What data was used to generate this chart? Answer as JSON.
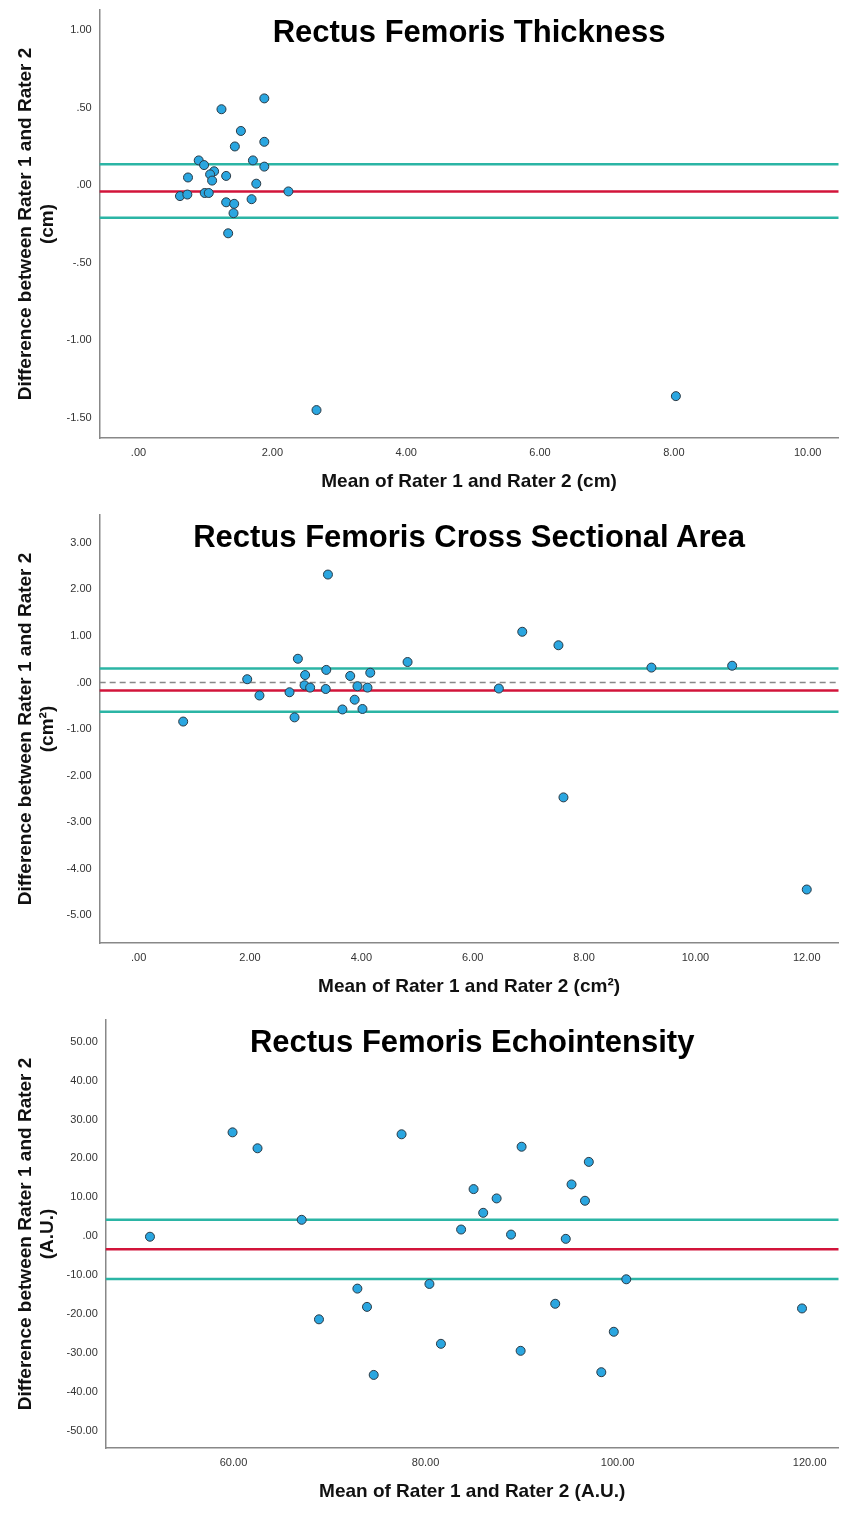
{
  "chart_data": [
    {
      "type": "scatter",
      "title": "Rectus Femoris Thickness",
      "xlabel": "Mean of Rater 1 and Rater 2 (cm)",
      "ylabel": "Difference between Rater 1 and Rater 2 (cm)",
      "x": [
        1.88,
        1.24,
        1.53,
        1.44,
        1.88,
        0.9,
        0.98,
        1.71,
        1.88,
        0.74,
        1.13,
        1.07,
        1.1,
        1.31,
        1.76,
        2.24,
        0.99,
        1.05,
        0.62,
        0.73,
        1.31,
        1.43,
        1.69,
        1.42,
        1.34,
        2.66,
        8.03
      ],
      "series": [
        {
          "color": "#2aa6e0",
          "values": [
            0.56,
            0.49,
            0.35,
            0.25,
            0.28,
            0.16,
            0.13,
            0.16,
            0.12,
            0.05,
            0.09,
            0.07,
            0.03,
            0.06,
            0.01,
            -0.04,
            -0.05,
            -0.05,
            -0.07,
            -0.06,
            -0.11,
            -0.12,
            -0.09,
            -0.18,
            -0.31,
            -1.45,
            -1.36
          ]
        }
      ],
      "xlim": [
        -0.58,
        10.46
      ],
      "ylim": [
        -1.63,
        1.13
      ],
      "xticks": [
        {
          "value": 0,
          "label": ".00"
        },
        {
          "value": 2,
          "label": "2.00"
        },
        {
          "value": 4,
          "label": "4.00"
        },
        {
          "value": 6,
          "label": "6.00"
        },
        {
          "value": 8,
          "label": "8.00"
        },
        {
          "value": 10,
          "label": "10.00"
        }
      ],
      "yticks": [
        {
          "value": -1.5,
          "label": "-1.50"
        },
        {
          "value": -1,
          "label": "-1.00"
        },
        {
          "value": -0.5,
          "label": "-.50"
        },
        {
          "value": 0,
          "label": ".00"
        },
        {
          "value": 0.5,
          "label": ".50"
        },
        {
          "value": 1,
          "label": "1.00"
        }
      ],
      "ref_lines": [
        {
          "axis": "y",
          "value": 0.135,
          "color": "#2bb5a5",
          "line_style": "solid"
        },
        {
          "axis": "y",
          "value": -0.04,
          "color": "#d2143a",
          "line_style": "solid"
        },
        {
          "axis": "y",
          "value": -0.21,
          "color": "#2bb5a5",
          "line_style": "solid"
        }
      ],
      "grid": false,
      "legend": false,
      "marker": "circle"
    },
    {
      "type": "scatter",
      "title": "Rectus Femoris Cross Sectional Area",
      "xlabel": "Mean of Rater 1 and Rater 2 (cm²)",
      "ylabel": "Difference between Rater 1 and Rater 2 (cm²)",
      "x": [
        3.4,
        6.89,
        2.86,
        4.83,
        3.37,
        2.99,
        1.95,
        3.8,
        4.16,
        2.98,
        3.08,
        3.36,
        3.93,
        4.11,
        6.47,
        2.71,
        2.17,
        3.88,
        3.66,
        4.02,
        2.8,
        0.8,
        7.54,
        9.21,
        10.66,
        7.63,
        12.0
      ],
      "series": [
        {
          "color": "#2aa6e0",
          "values": [
            2.32,
            1.09,
            0.51,
            0.44,
            0.27,
            0.16,
            0.07,
            0.14,
            0.21,
            -0.06,
            -0.11,
            -0.14,
            -0.08,
            -0.11,
            -0.13,
            -0.21,
            -0.28,
            -0.37,
            -0.58,
            -0.57,
            -0.75,
            -0.84,
            0.8,
            0.32,
            0.36,
            -2.47,
            -4.45
          ]
        }
      ],
      "xlim": [
        -0.7,
        12.57
      ],
      "ylim": [
        -5.6,
        3.6
      ],
      "xticks": [
        {
          "value": 0,
          "label": ".00"
        },
        {
          "value": 2,
          "label": "2.00"
        },
        {
          "value": 4,
          "label": "4.00"
        },
        {
          "value": 6,
          "label": "6.00"
        },
        {
          "value": 8,
          "label": "8.00"
        },
        {
          "value": 10,
          "label": "10.00"
        },
        {
          "value": 12,
          "label": "12.00"
        }
      ],
      "yticks": [
        {
          "value": -5,
          "label": "-5.00"
        },
        {
          "value": -4,
          "label": "-4.00"
        },
        {
          "value": -3,
          "label": "-3.00"
        },
        {
          "value": -2,
          "label": "-2.00"
        },
        {
          "value": -1,
          "label": "-1.00"
        },
        {
          "value": 0,
          "label": ".00"
        },
        {
          "value": 1,
          "label": "1.00"
        },
        {
          "value": 2,
          "label": "2.00"
        },
        {
          "value": 3,
          "label": "3.00"
        }
      ],
      "ref_lines": [
        {
          "axis": "y",
          "value": 0.3,
          "color": "#2bb5a5",
          "line_style": "solid"
        },
        {
          "axis": "y",
          "value": 0,
          "color": "#888888",
          "line_style": "dashed"
        },
        {
          "axis": "y",
          "value": -0.17,
          "color": "#d2143a",
          "line_style": "solid"
        },
        {
          "axis": "y",
          "value": -0.63,
          "color": "#2bb5a5",
          "line_style": "solid"
        }
      ],
      "grid": false,
      "legend": false,
      "marker": "circle"
    },
    {
      "type": "scatter",
      "title": "Rectus Femoris Echointensity",
      "xlabel": "Mean of Rater 1 and Rater 2 (A.U.)",
      "ylabel": "Difference between Rater 1 and Rater 2 (A.U.)",
      "x": [
        51.3,
        59.9,
        62.5,
        67.1,
        68.9,
        72.9,
        73.9,
        74.6,
        77.5,
        80.4,
        81.6,
        83.7,
        85.0,
        86.0,
        87.4,
        88.9,
        90.0,
        89.9,
        93.5,
        94.6,
        95.2,
        96.6,
        97.0,
        98.3,
        99.6,
        100.9,
        119.2
      ],
      "series": [
        {
          "color": "#2aa6e0",
          "values": [
            -0.15,
            26.7,
            22.6,
            4.2,
            -21.4,
            -13.5,
            -18.2,
            -35.7,
            26.2,
            -12.3,
            -27.7,
            1.7,
            12.1,
            6.0,
            9.7,
            0.4,
            23.0,
            -29.5,
            -17.4,
            -0.7,
            13.3,
            9.1,
            19.1,
            -35.0,
            -24.6,
            -11.1,
            -18.6
          ]
        }
      ],
      "xlim": [
        46.7,
        123
      ],
      "ylim": [
        -54.5,
        55.6
      ],
      "xticks": [
        {
          "value": 60,
          "label": "60.00"
        },
        {
          "value": 80,
          "label": "80.00"
        },
        {
          "value": 100,
          "label": "100.00"
        },
        {
          "value": 120,
          "label": "120.00"
        }
      ],
      "yticks": [
        {
          "value": -50,
          "label": "-50.00"
        },
        {
          "value": -40,
          "label": "-40.00"
        },
        {
          "value": -30,
          "label": "-30.00"
        },
        {
          "value": -20,
          "label": "-20.00"
        },
        {
          "value": -10,
          "label": "-10.00"
        },
        {
          "value": 0,
          "label": ".00"
        },
        {
          "value": 10,
          "label": "10.00"
        },
        {
          "value": 20,
          "label": "20.00"
        },
        {
          "value": 30,
          "label": "30.00"
        },
        {
          "value": 40,
          "label": "40.00"
        },
        {
          "value": 50,
          "label": "50.00"
        }
      ],
      "ref_lines": [
        {
          "axis": "y",
          "value": 4.2,
          "color": "#2bb5a5",
          "line_style": "solid"
        },
        {
          "axis": "y",
          "value": -3.4,
          "color": "#d2143a",
          "line_style": "solid"
        },
        {
          "axis": "y",
          "value": -11.0,
          "color": "#2bb5a5",
          "line_style": "solid"
        }
      ],
      "grid": false,
      "legend": false,
      "marker": "circle"
    }
  ]
}
